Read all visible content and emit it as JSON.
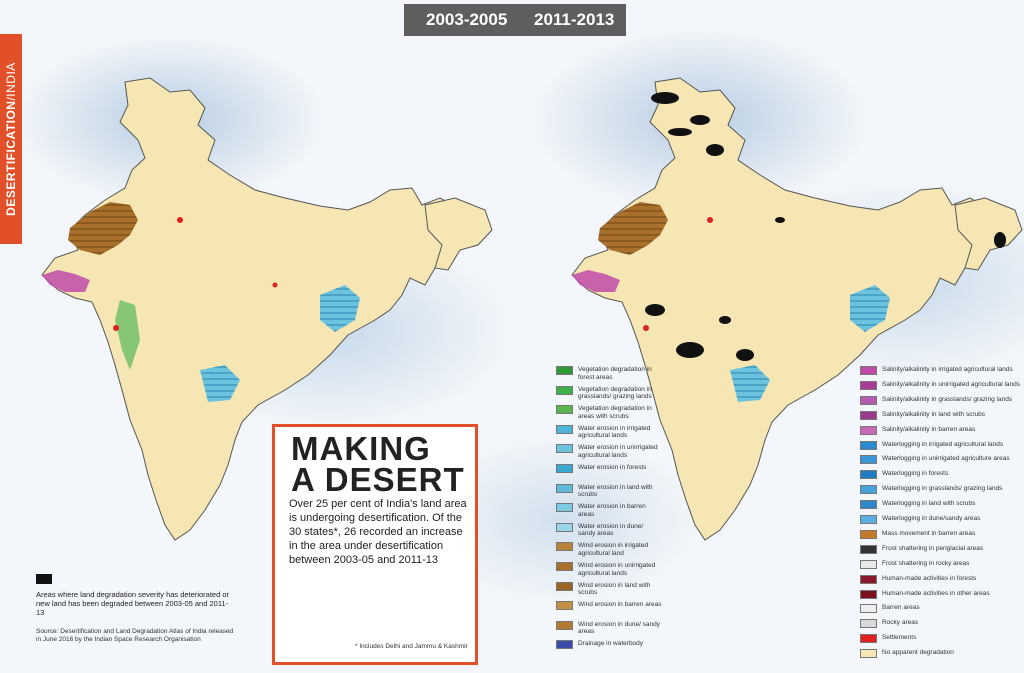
{
  "header": {
    "period_1": "2003-2005",
    "period_2": "2011-2013"
  },
  "side_tab": {
    "topic": "DESERTIFICATION",
    "separator": "/",
    "region": "INDIA"
  },
  "title_box": {
    "title_line1": "MAKING",
    "title_line2": "A DESERT",
    "subtitle": "Over 25 per cent of India's land area is undergoing desertification. Of the 30 states*, 26 recorded an increase in the area under desertification between 2003-05 and 2011-13",
    "footnote": "* Includes Delhi and Jammu & Kashmir"
  },
  "left_notes": {
    "black_area_text": "Areas where land degradation severity has deteriorated or new land has been degraded between 2003-05 and 2011-13",
    "source": "Source: Desertification and Land Degradation Atlas of India released in June 2016 by the Indian Space Research Organisation"
  },
  "legend_left": [
    {
      "label": "Vegetation degradation in forest areas",
      "color": "#2e9a3a"
    },
    {
      "label": "Vegetation degradation in grasslands/ grazing lands",
      "color": "#3db04a"
    },
    {
      "label": "Vegetation degradation in areas with scrubs",
      "color": "#58b84e"
    },
    {
      "label": "Water erosion in irrigated agricultural lands",
      "color": "#4fb5d6"
    },
    {
      "label": "Water erosion in unirrigated agricultural lands",
      "color": "#6cc3de"
    },
    {
      "label": "Water erosion in forests",
      "color": "#3aa8cf"
    },
    {
      "label": "Water erosion in land with scrubs",
      "color": "#5fbad8"
    },
    {
      "label": "Water erosion in barren areas",
      "color": "#7ccbe2"
    },
    {
      "label": "Water erosion in dune/ sandy areas",
      "color": "#9ad6e8"
    },
    {
      "label": "Wind erosion in irrigated agricultural land",
      "color": "#b8823a"
    },
    {
      "label": "Wind erosion in unirrigated agricultural lands",
      "color": "#a8702a"
    },
    {
      "label": "Wind erosion in land with scrubs",
      "color": "#9a6424"
    },
    {
      "label": "Wind erosion in barren areas",
      "color": "#c49048"
    },
    {
      "label": "Wind erosion in dune/ sandy areas",
      "color": "#b47a34"
    },
    {
      "label": "Drainage in waterbody",
      "color": "#3a4aa8"
    }
  ],
  "legend_right": [
    {
      "label": "Salinity/alkalinity in irrigated agricultural lands",
      "color": "#c04aa8"
    },
    {
      "label": "Salinity/alkalinity in unirrigated agricultural lands",
      "color": "#a83a98"
    },
    {
      "label": "Salinity/alkalinity in grasslands/ grazing lands",
      "color": "#b45ab0"
    },
    {
      "label": "Salinity/alkalinity in land with scrubs",
      "color": "#9a3a8c"
    },
    {
      "label": "Salinity/alkalinity in barren areas",
      "color": "#c86ab8"
    },
    {
      "label": "Waterlogging in irrigated agricultural lands",
      "color": "#2a8ad0"
    },
    {
      "label": "Waterlogging in unirrigated agriculture areas",
      "color": "#3a96d6"
    },
    {
      "label": "Waterlogging in forests",
      "color": "#1e7cc4"
    },
    {
      "label": "Waterlogging in grasslands/ grazing lands",
      "color": "#4aa2dc"
    },
    {
      "label": "Waterlogging in land with scrubs",
      "color": "#2e86c8"
    },
    {
      "label": "Waterlogging in dune/sandy areas",
      "color": "#5aaee0"
    },
    {
      "label": "Mass movement in barren areas",
      "color": "#c47a2a"
    },
    {
      "label": "Frost shattering in periglacial areas",
      "color": "#333333"
    },
    {
      "label": "Frost shattering in rocky areas",
      "color": "#e8e8e8"
    },
    {
      "label": "Human-made activities in forests",
      "color": "#8a1a2a"
    },
    {
      "label": "Human-made activities in other areas",
      "color": "#7a1020"
    },
    {
      "label": "Barren areas",
      "color": "#f0f0f0"
    },
    {
      "label": "Rocky areas",
      "color": "#d8d8d8"
    },
    {
      "label": "Settlements",
      "color": "#e02020"
    },
    {
      "label": "No apparent degradation",
      "color": "#f5e6b4"
    }
  ]
}
